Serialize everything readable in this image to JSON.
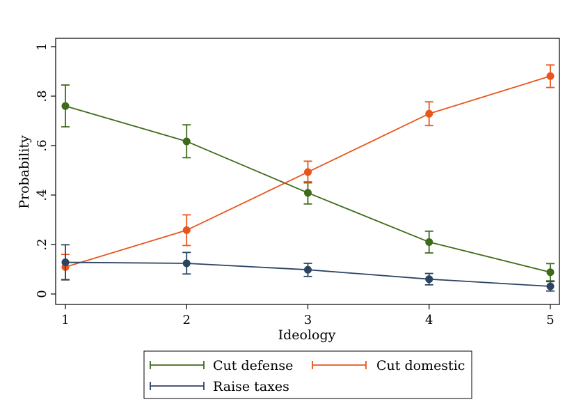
{
  "chart_data": {
    "type": "line",
    "xlabel": "Ideology",
    "ylabel": "Probability",
    "x": [
      1,
      2,
      3,
      4,
      5
    ],
    "xlim": [
      1,
      5
    ],
    "ylim": [
      0,
      1
    ],
    "x_ticks": [
      "1",
      "2",
      "3",
      "4",
      "5"
    ],
    "y_ticks": [
      {
        "value": 0,
        "label": "0"
      },
      {
        "value": 0.2,
        "label": ".2"
      },
      {
        "value": 0.4,
        "label": ".4"
      },
      {
        "value": 0.6,
        "label": ".6"
      },
      {
        "value": 0.8,
        "label": ".8"
      },
      {
        "value": 1,
        "label": "1"
      }
    ],
    "grid": false,
    "legend_position": "bottom",
    "series": [
      {
        "name": "Cut defense",
        "color": "#3d6b1a",
        "values": [
          0.76,
          0.617,
          0.409,
          0.21,
          0.088
        ],
        "ci_low": [
          0.676,
          0.551,
          0.364,
          0.166,
          0.053
        ],
        "ci_high": [
          0.845,
          0.684,
          0.453,
          0.254,
          0.123
        ]
      },
      {
        "name": "Cut domestic",
        "color": "#e8561c",
        "values": [
          0.109,
          0.258,
          0.493,
          0.729,
          0.881
        ],
        "ci_low": [
          0.059,
          0.196,
          0.449,
          0.681,
          0.835
        ],
        "ci_high": [
          0.16,
          0.32,
          0.537,
          0.777,
          0.926
        ]
      },
      {
        "name": "Raise taxes",
        "color": "#2b4462",
        "values": [
          0.128,
          0.124,
          0.098,
          0.06,
          0.031
        ],
        "ci_low": [
          0.057,
          0.081,
          0.071,
          0.037,
          0.012
        ],
        "ci_high": [
          0.199,
          0.168,
          0.124,
          0.083,
          0.05
        ]
      }
    ]
  }
}
